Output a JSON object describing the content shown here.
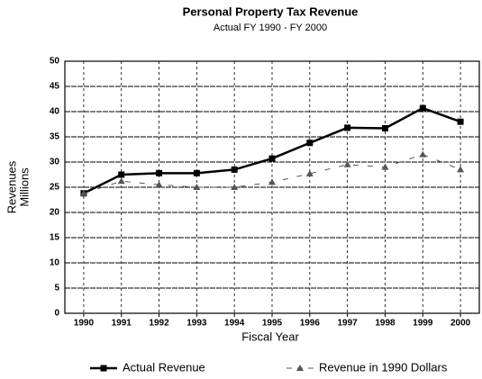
{
  "chart_data": {
    "type": "line",
    "title": "Personal Property Tax Revenue",
    "subtitle": "Actual FY 1990 - FY 2000",
    "x_label": "Fiscal Year",
    "y_label": [
      "Revenues",
      "Millions"
    ],
    "categories": [
      "1990",
      "1991",
      "1992",
      "1993",
      "1994",
      "1995",
      "1996",
      "1997",
      "1998",
      "1999",
      "2000"
    ],
    "series": [
      {
        "name": "Actual Revenue",
        "color": "#000000",
        "line_style": "solid",
        "marker": "square",
        "values": [
          23.8,
          27.5,
          27.8,
          27.8,
          28.5,
          30.7,
          33.8,
          36.8,
          36.7,
          40.7,
          38.0
        ]
      },
      {
        "name": "Revenue in 1990 Dollars",
        "color": "#555555",
        "line_style": "dashed",
        "marker": "triangle",
        "values": [
          23.8,
          26.2,
          25.5,
          25.0,
          25.0,
          26.0,
          27.7,
          29.5,
          29.0,
          31.5,
          28.5
        ]
      }
    ],
    "ylim": [
      0,
      50
    ],
    "yticks": [
      0,
      5,
      10,
      15,
      20,
      25,
      30,
      35,
      40,
      45,
      50
    ],
    "grid": true,
    "legend": "bottom"
  }
}
